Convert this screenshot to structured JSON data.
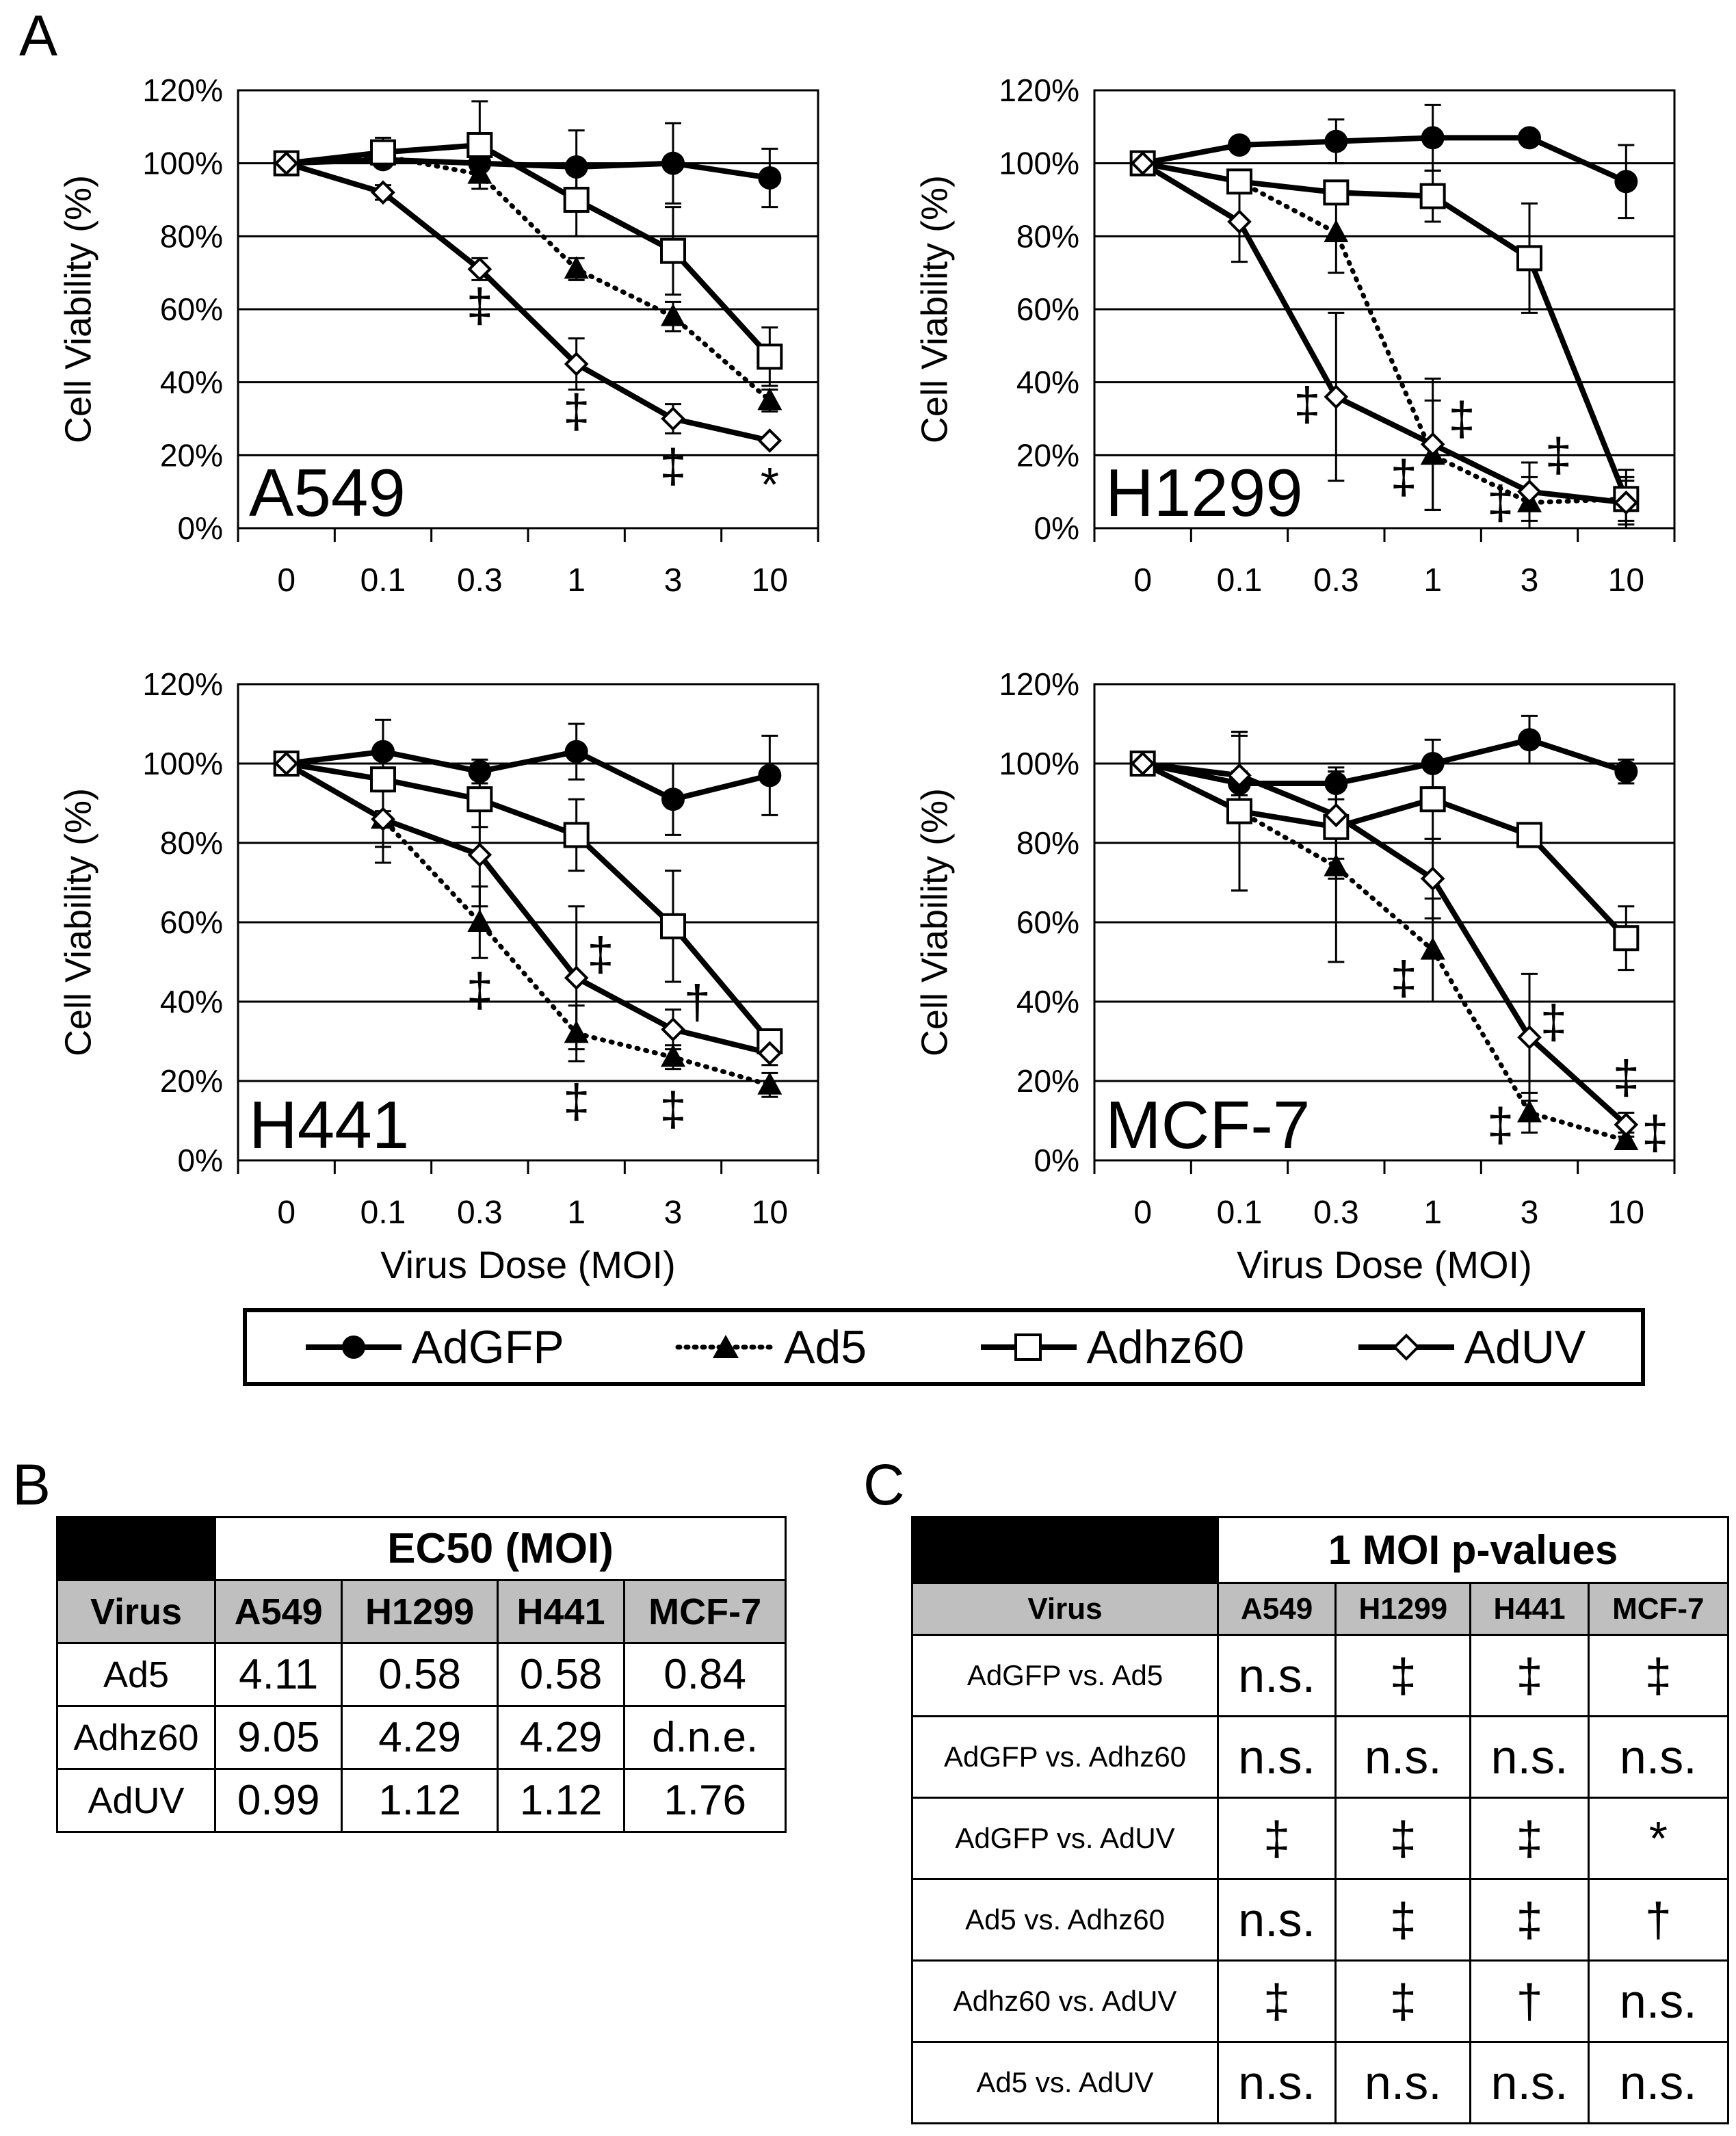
{
  "panel_labels": {
    "a": "A",
    "b": "B",
    "c": "C"
  },
  "colors": {
    "line": "#000000",
    "grid": "#000000",
    "header_gray": "#bfbfbf",
    "black_cell": "#000000"
  },
  "legend": [
    {
      "name": "AdGFP",
      "marker": "filled-circle",
      "dash": "solid"
    },
    {
      "name": "Ad5",
      "marker": "filled-triangle",
      "dash": "dotted"
    },
    {
      "name": "Adhz60",
      "marker": "open-square",
      "dash": "solid"
    },
    {
      "name": "AdUV",
      "marker": "open-diamond",
      "dash": "solid"
    }
  ],
  "chart_data": [
    {
      "type": "line",
      "title": "A549",
      "categories": [
        "0",
        "0.1",
        "0.3",
        "1",
        "3",
        "10"
      ],
      "xlabel": "",
      "ylabel": "Cell Viability (%)",
      "ylim": [
        0,
        120
      ],
      "yticks": [
        "0%",
        "20%",
        "40%",
        "60%",
        "80%",
        "100%",
        "120%"
      ],
      "series": [
        {
          "name": "AdGFP",
          "values": [
            100,
            101,
            100,
            99,
            100,
            96
          ],
          "err": [
            0,
            2,
            2,
            10,
            11,
            8
          ]
        },
        {
          "name": "Ad5",
          "values": [
            100,
            102,
            97,
            71,
            58,
            35
          ],
          "err": [
            0,
            3,
            4,
            3,
            4,
            3
          ]
        },
        {
          "name": "Adhz60",
          "values": [
            100,
            103,
            105,
            90,
            76,
            47
          ],
          "err": [
            0,
            4,
            12,
            10,
            12,
            8
          ]
        },
        {
          "name": "AdUV",
          "values": [
            100,
            92,
            71,
            45,
            30,
            24
          ],
          "err": [
            0,
            2,
            3,
            7,
            4,
            1
          ]
        }
      ],
      "annotations": [
        {
          "text": "‡",
          "x": 2,
          "y": 60
        },
        {
          "text": "‡",
          "x": 3,
          "y": 31
        },
        {
          "text": "‡",
          "x": 4,
          "y": 16
        },
        {
          "text": "*",
          "x": 5,
          "y": 11
        }
      ]
    },
    {
      "type": "line",
      "title": "H1299",
      "categories": [
        "0",
        "0.1",
        "0.3",
        "1",
        "3",
        "10"
      ],
      "xlabel": "",
      "ylabel": "Cell Viability (%)",
      "ylim": [
        0,
        120
      ],
      "yticks": [
        "0%",
        "20%",
        "40%",
        "60%",
        "80%",
        "100%",
        "120%"
      ],
      "series": [
        {
          "name": "AdGFP",
          "values": [
            100,
            105,
            106,
            107,
            107,
            95
          ],
          "err": [
            0,
            2,
            6,
            9,
            1,
            10
          ]
        },
        {
          "name": "Ad5",
          "values": [
            100,
            95,
            81,
            20,
            7,
            8
          ],
          "err": [
            0,
            3,
            11,
            15,
            7,
            6
          ]
        },
        {
          "name": "Adhz60",
          "values": [
            100,
            95,
            92,
            91,
            74,
            8
          ],
          "err": [
            0,
            3,
            3,
            7,
            15,
            8
          ]
        },
        {
          "name": "AdUV",
          "values": [
            100,
            84,
            36,
            23,
            10,
            7
          ],
          "err": [
            0,
            11,
            23,
            18,
            8,
            6
          ]
        }
      ],
      "annotations": [
        {
          "text": "‡",
          "x": 1.7,
          "y": 33
        },
        {
          "text": "‡",
          "x": 2.7,
          "y": 13
        },
        {
          "text": "‡",
          "x": 3.3,
          "y": 29
        },
        {
          "text": "‡",
          "x": 3.7,
          "y": 6
        },
        {
          "text": "‡",
          "x": 4.3,
          "y": 19
        }
      ]
    },
    {
      "type": "line",
      "title": "H441",
      "categories": [
        "0",
        "0.1",
        "0.3",
        "1",
        "3",
        "10"
      ],
      "xlabel": "Virus Dose (MOI)",
      "ylabel": "Cell Viability (%)",
      "ylim": [
        0,
        120
      ],
      "yticks": [
        "0%",
        "20%",
        "40%",
        "60%",
        "80%",
        "100%",
        "120%"
      ],
      "series": [
        {
          "name": "AdGFP",
          "values": [
            100,
            103,
            98,
            103,
            91,
            97
          ],
          "err": [
            0,
            8,
            3,
            7,
            9,
            10
          ]
        },
        {
          "name": "Ad5",
          "values": [
            100,
            86,
            60,
            32,
            26,
            19
          ],
          "err": [
            0,
            7,
            9,
            7,
            3,
            3
          ]
        },
        {
          "name": "Adhz60",
          "values": [
            100,
            96,
            91,
            82,
            59,
            30
          ],
          "err": [
            0,
            8,
            7,
            9,
            14,
            3
          ]
        },
        {
          "name": "AdUV",
          "values": [
            100,
            86,
            77,
            46,
            33,
            27
          ],
          "err": [
            0,
            11,
            13,
            18,
            5,
            3
          ]
        }
      ],
      "annotations": [
        {
          "text": "‡",
          "x": 2,
          "y": 42
        },
        {
          "text": "‡",
          "x": 3.25,
          "y": 51
        },
        {
          "text": "‡",
          "x": 3,
          "y": 14
        },
        {
          "text": "‡",
          "x": 4,
          "y": 12
        },
        {
          "text": "†",
          "x": 4.25,
          "y": 39
        }
      ]
    },
    {
      "type": "line",
      "title": "MCF-7",
      "categories": [
        "0",
        "0.1",
        "0.3",
        "1",
        "3",
        "10"
      ],
      "xlabel": "Virus Dose (MOI)",
      "ylabel": "Cell Viability (%)",
      "ylim": [
        0,
        120
      ],
      "yticks": [
        "0%",
        "20%",
        "40%",
        "60%",
        "80%",
        "100%",
        "120%"
      ],
      "series": [
        {
          "name": "AdGFP",
          "values": [
            100,
            95,
            95,
            100,
            106,
            98
          ],
          "err": [
            0,
            3,
            4,
            6,
            6,
            3
          ]
        },
        {
          "name": "Ad5",
          "values": [
            100,
            88,
            74,
            53,
            12,
            5
          ],
          "err": [
            0,
            20,
            24,
            13,
            5,
            2
          ]
        },
        {
          "name": "Adhz60",
          "values": [
            100,
            88,
            84,
            91,
            82,
            56
          ],
          "err": [
            0,
            20,
            13,
            10,
            3,
            8
          ]
        },
        {
          "name": "AdUV",
          "values": [
            100,
            97,
            87,
            71,
            31,
            9
          ],
          "err": [
            0,
            10,
            11,
            10,
            16,
            3
          ]
        }
      ],
      "annotations": [
        {
          "text": "‡",
          "x": 2.7,
          "y": 45
        },
        {
          "text": "‡",
          "x": 3.7,
          "y": 8
        },
        {
          "text": "‡",
          "x": 4.25,
          "y": 34
        },
        {
          "text": "‡",
          "x": 5,
          "y": 20
        },
        {
          "text": "‡",
          "x": 5.3,
          "y": 6
        }
      ]
    }
  ],
  "table_b": {
    "title": "EC50 (MOI)",
    "headers": [
      "Virus",
      "A549",
      "H1299",
      "H441",
      "MCF-7"
    ],
    "rows": [
      [
        "Ad5",
        "4.11",
        "0.58",
        "0.58",
        "0.84"
      ],
      [
        "Adhz60",
        "9.05",
        "4.29",
        "4.29",
        "d.n.e."
      ],
      [
        "AdUV",
        "0.99",
        "1.12",
        "1.12",
        "1.76"
      ]
    ]
  },
  "table_c": {
    "title": "1 MOI p-values",
    "headers": [
      "Virus",
      "A549",
      "H1299",
      "H441",
      "MCF-7"
    ],
    "rows": [
      [
        "AdGFP vs. Ad5",
        "n.s.",
        "‡",
        "‡",
        "‡"
      ],
      [
        "AdGFP vs. Adhz60",
        "n.s.",
        "n.s.",
        "n.s.",
        "n.s."
      ],
      [
        "AdGFP vs. AdUV",
        "‡",
        "‡",
        "‡",
        "*"
      ],
      [
        "Ad5 vs. Adhz60",
        "n.s.",
        "‡",
        "‡",
        "†"
      ],
      [
        "Adhz60 vs. AdUV",
        "‡",
        "‡",
        "†",
        "n.s."
      ],
      [
        "Ad5 vs. AdUV",
        "n.s.",
        "n.s.",
        "n.s.",
        "n.s."
      ]
    ]
  }
}
